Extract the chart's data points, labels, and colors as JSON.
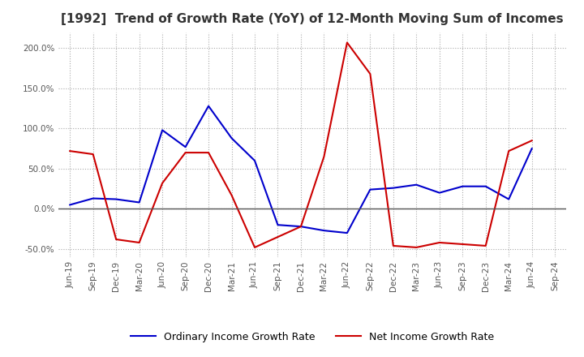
{
  "title": "[1992]  Trend of Growth Rate (YoY) of 12-Month Moving Sum of Incomes",
  "title_fontsize": 11,
  "background_color": "#ffffff",
  "grid_color": "#aaaaaa",
  "ordinary_color": "#0000cc",
  "net_color": "#cc0000",
  "legend_labels": [
    "Ordinary Income Growth Rate",
    "Net Income Growth Rate"
  ],
  "x_labels": [
    "Jun-19",
    "Sep-19",
    "Dec-19",
    "Mar-20",
    "Jun-20",
    "Sep-20",
    "Dec-20",
    "Mar-21",
    "Jun-21",
    "Sep-21",
    "Dec-21",
    "Mar-22",
    "Jun-22",
    "Sep-22",
    "Dec-22",
    "Mar-23",
    "Jun-23",
    "Sep-23",
    "Dec-23",
    "Mar-24",
    "Jun-24",
    "Sep-24"
  ],
  "ordinary_income": [
    0.05,
    0.13,
    0.12,
    0.08,
    0.98,
    0.77,
    1.28,
    0.88,
    0.6,
    -0.2,
    -0.22,
    -0.27,
    -0.3,
    0.24,
    0.26,
    0.3,
    0.2,
    0.28,
    0.28,
    0.12,
    0.75,
    null
  ],
  "net_income": [
    0.72,
    0.68,
    -0.38,
    -0.42,
    0.32,
    0.7,
    0.7,
    0.17,
    -0.48,
    -0.35,
    -0.22,
    0.65,
    2.07,
    1.68,
    -0.46,
    -0.48,
    -0.42,
    -0.44,
    -0.46,
    0.72,
    0.85,
    null
  ],
  "ylim_min": -0.6,
  "ylim_max": 2.2,
  "yticks": [
    -0.5,
    0.0,
    0.5,
    1.0,
    1.5,
    2.0
  ]
}
